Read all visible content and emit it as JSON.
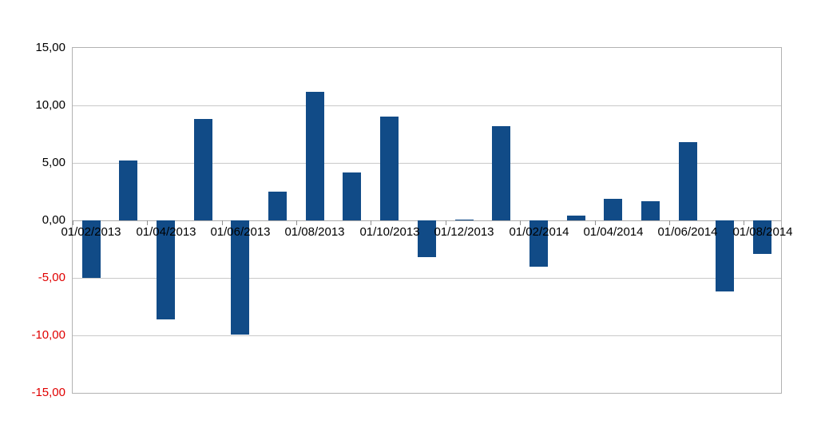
{
  "chart_data": {
    "type": "bar",
    "title": "",
    "xlabel": "",
    "ylabel": "",
    "legend": "none",
    "grid": true,
    "ylim": [
      -15,
      15
    ],
    "values": [
      -5.0,
      5.2,
      -8.6,
      8.8,
      -9.9,
      2.5,
      11.2,
      4.2,
      9.0,
      -3.2,
      0.1,
      8.2,
      -4.0,
      0.4,
      1.9,
      1.7,
      6.8,
      -6.2,
      -2.9
    ],
    "x_tick_labels": [
      "01/02/2013",
      "01/04/2013",
      "01/06/2013",
      "01/08/2013",
      "01/10/2013",
      "01/12/2013",
      "01/02/2014",
      "01/04/2014",
      "01/06/2014",
      "01/08/2014"
    ],
    "x_labeled_bar_indices": [
      0,
      2,
      4,
      6,
      8,
      10,
      12,
      14,
      16,
      18
    ],
    "y_ticks": [
      {
        "value": 15,
        "label": "15,00"
      },
      {
        "value": 10,
        "label": "10,00"
      },
      {
        "value": 5,
        "label": "5,00"
      },
      {
        "value": 0,
        "label": "0,00"
      },
      {
        "value": -5,
        "label": "-5,00"
      },
      {
        "value": -10,
        "label": "-10,00"
      },
      {
        "value": -15,
        "label": "-15,00"
      }
    ],
    "colors": {
      "bar": "#114b87",
      "positive_axis_label": "#000000",
      "negative_axis_label": "#e00000",
      "gridline": "#c9c9c9",
      "zero_line": "#adadad",
      "frame": "#b2b2b2",
      "tick_mark": "#8f8f8f",
      "background": "#ffffff"
    }
  }
}
